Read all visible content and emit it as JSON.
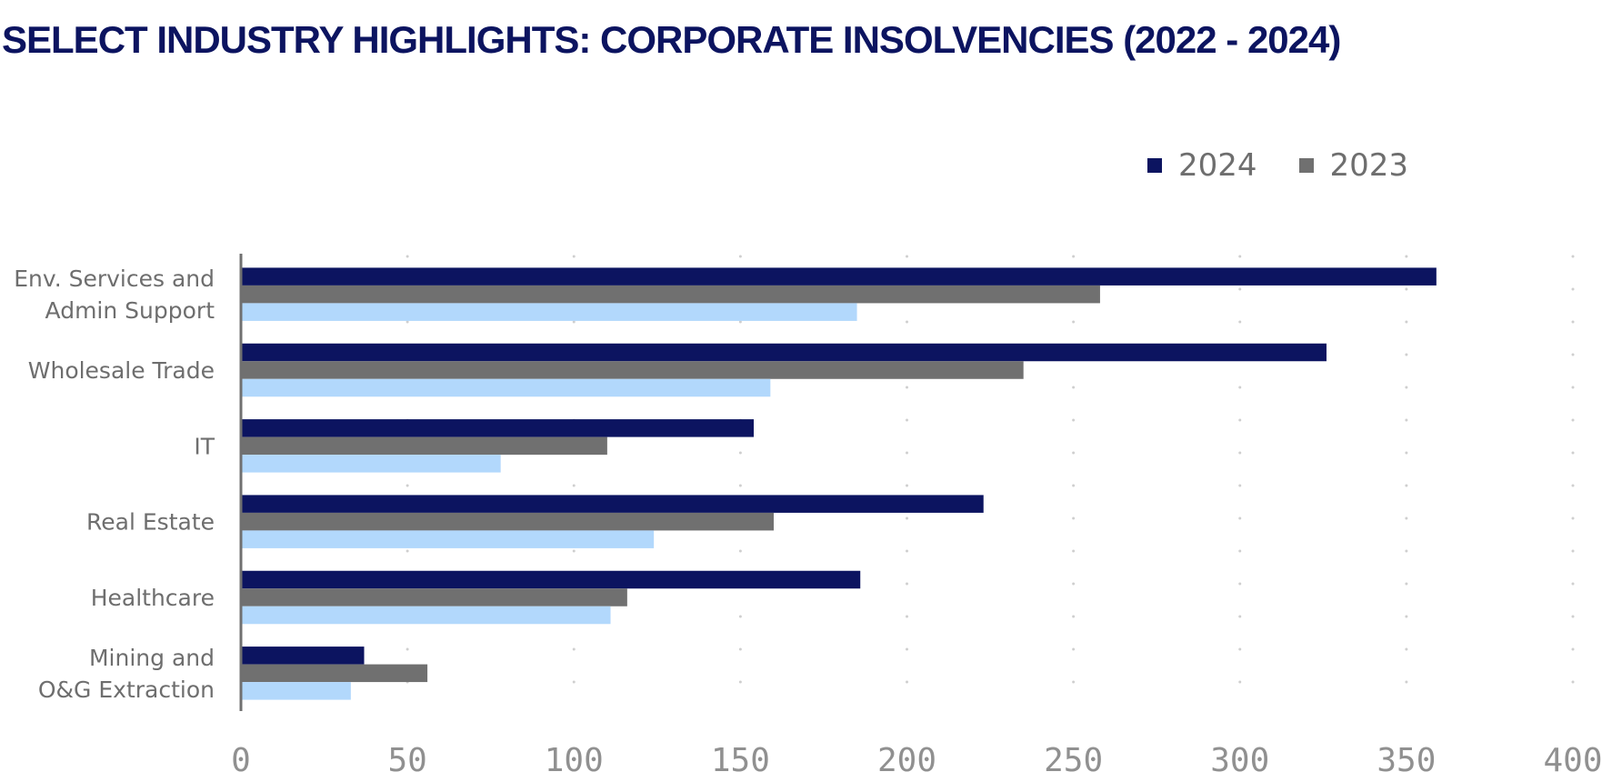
{
  "title": "SELECT INDUSTRY HIGHLIGHTS: CORPORATE INSOLVENCIES (2022 - 2024)",
  "legend": [
    {
      "label": "2024",
      "color": "#0c1460"
    },
    {
      "label": "2023",
      "color": "#707070"
    }
  ],
  "chart_data": {
    "type": "bar",
    "orientation": "horizontal",
    "title": "SELECT INDUSTRY HIGHLIGHTS: CORPORATE INSOLVENCIES (2022 - 2024)",
    "xlabel": "",
    "ylabel": "",
    "xlim": [
      0,
      400
    ],
    "ticks": [
      "0",
      "50",
      "100",
      "150",
      "200",
      "250",
      "300",
      "350",
      "400"
    ],
    "grid": "vertical dotted",
    "legend_position": "top-right",
    "categories": [
      [
        "Env. Services and",
        "Admin Support"
      ],
      [
        "Wholesale Trade"
      ],
      [
        "IT"
      ],
      [
        "Real Estate"
      ],
      [
        "Healthcare"
      ],
      [
        "Mining and",
        "O&G Extraction"
      ]
    ],
    "series": [
      {
        "name": "2024",
        "color": "#0c1460",
        "values": [
          359,
          326,
          154,
          223,
          186,
          37
        ]
      },
      {
        "name": "2023",
        "color": "#707070",
        "values": [
          258,
          235,
          110,
          160,
          116,
          56
        ]
      },
      {
        "name": "",
        "color": "#b2d8fc",
        "values": [
          185,
          159,
          78,
          124,
          111,
          33
        ]
      }
    ]
  }
}
